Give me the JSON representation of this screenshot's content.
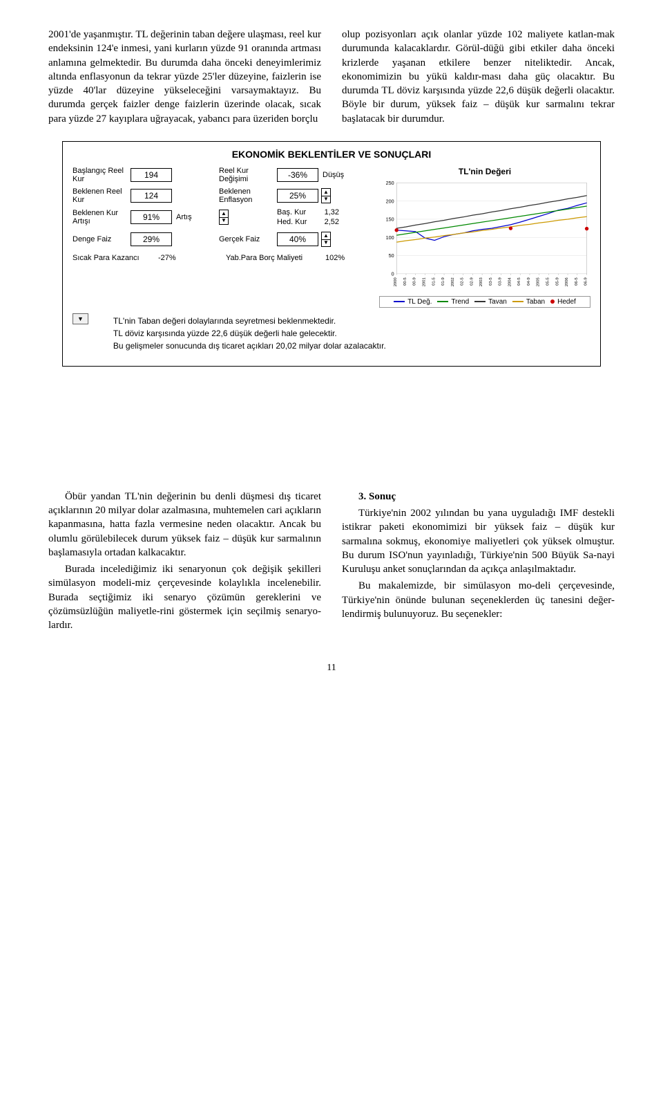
{
  "top": {
    "left": "2001'de yaşanmıştır. TL değerinin taban değere ulaşması, reel kur endeksinin 124'e inmesi, yani kurların yüzde 91 oranında artması anlamına gelmektedir. Bu durumda daha önceki deneyimlerimiz altında enflasyonun da tekrar yüzde 25'ler düzeyine, faizlerin ise yüzde 40'lar düzeyine yükseleceğini varsaymaktayız. Bu durumda gerçek faizler denge faizlerin üzerinde olacak, sıcak para yüzde 27 kayıplara uğrayacak, yabancı para üzeriden borçlu",
    "right": "olup pozisyonları açık olanlar yüzde 102 maliyete katlan-mak durumunda kalacaklardır. Görül-düğü gibi etkiler daha önceki krizlerde yaşanan etkilere benzer niteliktedir. Ancak, ekonomimizin bu yükü kaldır-ması daha güç olacaktır. Bu durumda TL döviz karşısında yüzde 22,6 düşük değerli olacaktır. Böyle bir durum, yüksek faiz – düşük kur sarmalını tekrar başlatacak bir durumdur."
  },
  "panel": {
    "title": "EKONOMİK BEKLENTİLER VE SONUÇLARI",
    "rows": {
      "baslangic_label": "Başlangıç Reel Kur",
      "baslangic_val": "194",
      "reelkur_deg_label": "Reel Kur Değişimi",
      "reelkur_deg_val": "-36%",
      "reelkur_deg_word": "Düşüş",
      "beklenen_kur_label": "Beklenen Reel Kur",
      "beklenen_kur_val": "124",
      "beklenen_enf_label": "Beklenen Enflasyon",
      "beklenen_enf_val": "25%",
      "beklenen_artis_label": "Beklenen Kur Artışı",
      "beklenen_artis_val": "91%",
      "beklenen_artis_word": "Artış",
      "bas_kur_label": "Baş. Kur",
      "bas_kur_val": "1,32",
      "hed_kur_label": "Hed. Kur",
      "hed_kur_val": "2,52",
      "denge_faiz_label": "Denge Faiz",
      "denge_faiz_val": "29%",
      "gercek_faiz_label": "Gerçek Faiz",
      "gercek_faiz_val": "40%",
      "sicak_label": "Sıcak Para Kazancı",
      "sicak_val": "-27%",
      "yab_label": "Yab.Para Borç Maliyeti",
      "yab_val": "102%"
    },
    "chart": {
      "title": "TL'nin Değeri",
      "y_ticks": [
        "0",
        "50",
        "100",
        "150",
        "200",
        "250"
      ],
      "x_ticks": [
        "2000",
        "00-5",
        "00-9",
        "2001",
        "01-5",
        "01-9",
        "2002",
        "02-5",
        "02-9",
        "2003",
        "03-5",
        "03-9",
        "2004",
        "04-5",
        "04-9",
        "2005",
        "05-5",
        "05-9",
        "2006",
        "06-5",
        "06-9"
      ],
      "series": {
        "tl_deg": {
          "label": "TL Değ.",
          "color": "#0000cc",
          "data": [
            120,
            118,
            116,
            98,
            92,
            102,
            108,
            112,
            118,
            122,
            125,
            130,
            135,
            142,
            150,
            158,
            166,
            175,
            180,
            188,
            195
          ]
        },
        "trend": {
          "label": "Trend",
          "color": "#008800",
          "data": [
            106,
            110,
            114,
            118,
            122,
            126,
            130,
            134,
            138,
            142,
            146,
            150,
            154,
            158,
            162,
            166,
            170,
            174,
            178,
            182,
            186
          ]
        },
        "tavan": {
          "label": "Tavan",
          "color": "#333333",
          "data": [
            125,
            129,
            134,
            138,
            143,
            147,
            152,
            156,
            161,
            165,
            170,
            174,
            179,
            183,
            188,
            192,
            197,
            201,
            206,
            210,
            215
          ]
        },
        "taban": {
          "label": "Taban",
          "color": "#cc9900",
          "data": [
            87,
            91,
            94,
            98,
            101,
            105,
            108,
            112,
            115,
            119,
            122,
            126,
            129,
            133,
            136,
            140,
            143,
            147,
            150,
            154,
            157
          ]
        },
        "hedef": {
          "label": "Hedef",
          "color": "#cc0000",
          "points": [
            [
              0,
              120
            ],
            [
              12,
              125
            ],
            [
              20,
              124
            ]
          ]
        }
      }
    },
    "commentary": {
      "l1": "TL'nin Taban değeri dolaylarında seyretmesi beklenmektedir.",
      "l2": "TL döviz karşısında yüzde 22,6 düşük değerli hale gelecektir.",
      "l3": "Bu gelişmeler sonucunda dış ticaret açıkları 20,02 milyar dolar azalacaktır."
    }
  },
  "bottom": {
    "left1": "Öbür yandan TL'nin değerinin bu denli düşmesi dış ticaret açıklarının 20 milyar dolar azalmasına, muhtemelen cari açıkların kapanmasına, hatta fazla vermesine neden olacaktır. Ancak bu olumlu görülebilecek durum yüksek faiz – düşük kur sarmalının başlamasıyla ortadan kalkacaktır.",
    "left2": "Burada incelediğimiz iki senaryonun çok değişik şekilleri simülasyon modeli-miz çerçevesinde kolaylıkla incelenebilir. Burada seçtiğimiz iki senaryo çözümün gereklerini ve çözümsüzlüğün maliyetle-rini göstermek için seçilmiş senaryo-lardır.",
    "right_heading": "3. Sonuç",
    "right1": "Türkiye'nin 2002 yılından bu yana uyguladığı IMF destekli istikrar paketi ekonomimizi bir yüksek faiz – düşük kur sarmalına sokmuş, ekonomiye maliyetleri çok yüksek olmuştur. Bu durum ISO'nun yayınladığı, Türkiye'nin 500 Büyük Sa-nayi Kuruluşu anket sonuçlarından da açıkça anlaşılmaktadır.",
    "right2": "Bu makalemizde, bir simülasyon mo-deli çerçevesinde, Türkiye'nin önünde bulunan seçeneklerden üç tanesini değer-lendirmiş bulunuyoruz. Bu seçenekler:"
  },
  "pagenum": "11"
}
